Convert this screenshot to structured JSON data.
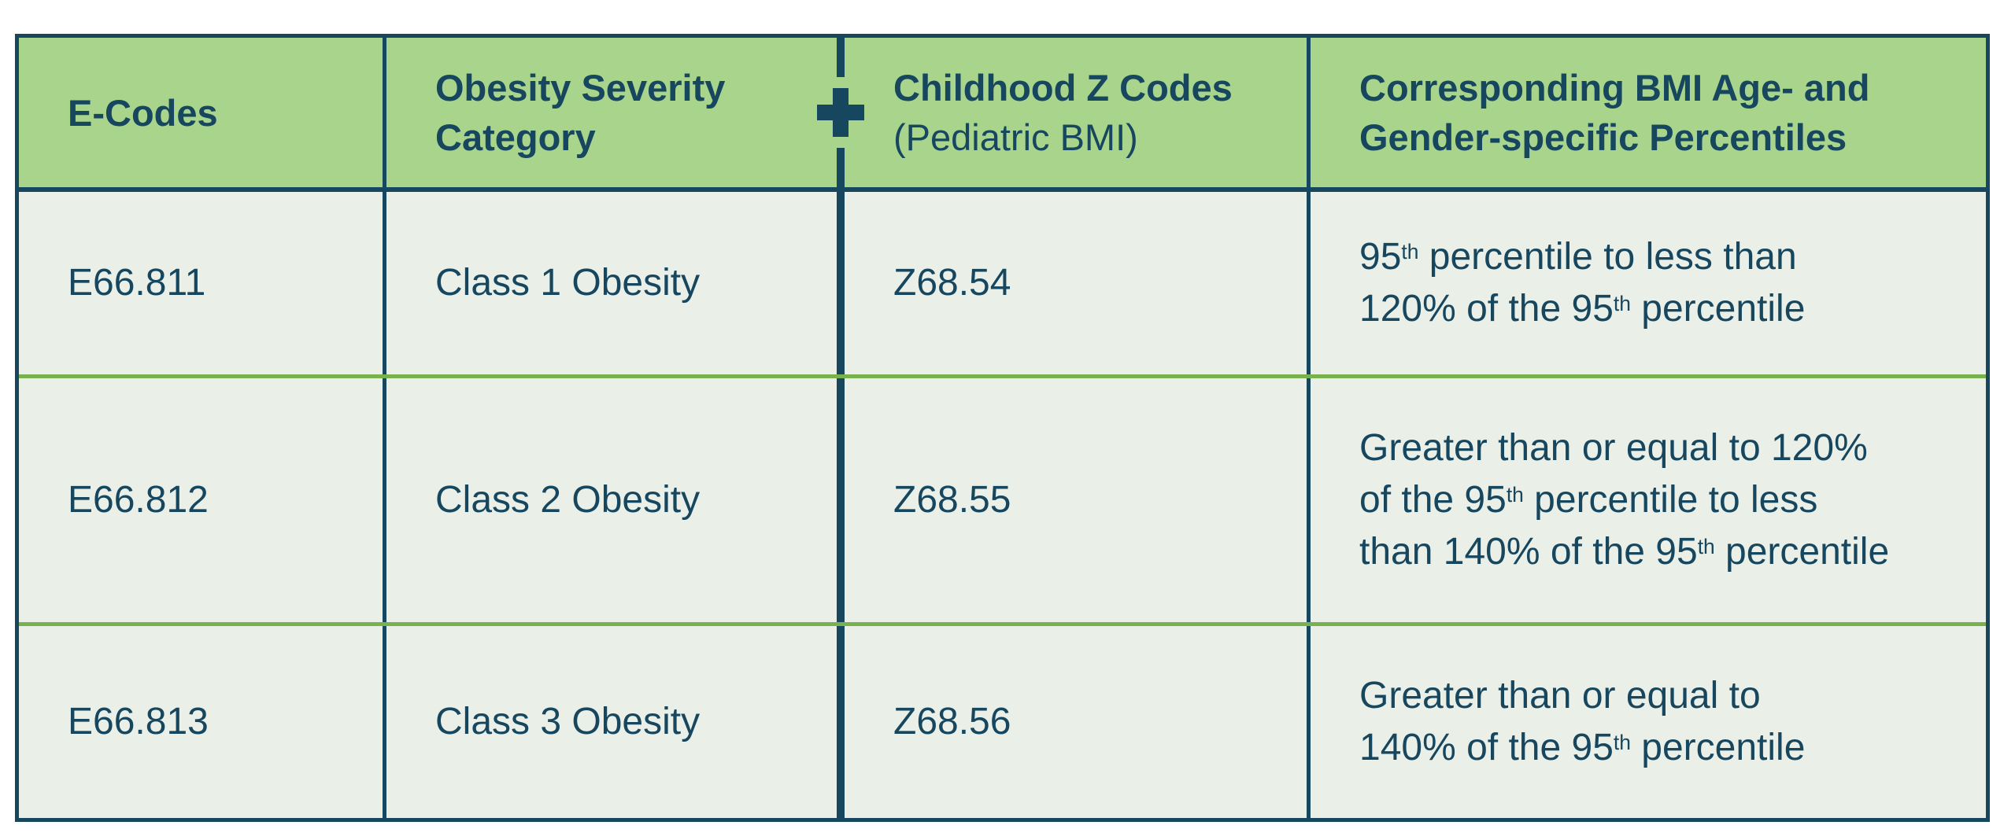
{
  "colors": {
    "navy": "#17465f",
    "header_green": "#a9d48c",
    "row_bg": "#eaefe7",
    "divider_green": "#77b24e",
    "page_bg": "#ffffff"
  },
  "header": {
    "e_codes": "E-Codes",
    "severity_parts": [
      {
        "t": "Obesity Severity"
      },
      {
        "br": true
      },
      {
        "t": "Category"
      }
    ],
    "z_codes_title": "Childhood Z Codes",
    "z_codes_sub": "(Pediatric BMI)",
    "percentiles_parts": [
      {
        "t": "Corresponding BMI Age- and"
      },
      {
        "br": true
      },
      {
        "t": "Gender-specific Percentiles"
      }
    ],
    "plus_icon": "plus"
  },
  "rows": [
    {
      "e_code": "E66.811",
      "category": "Class 1 Obesity",
      "z_code": "Z68.54",
      "percentile_parts": [
        {
          "t": "95"
        },
        {
          "t": "th",
          "sup": true
        },
        {
          "t": " percentile to less than"
        },
        {
          "br": true
        },
        {
          "t": "120% of the 95"
        },
        {
          "t": "th",
          "sup": true
        },
        {
          "t": " percentile"
        }
      ]
    },
    {
      "e_code": "E66.812",
      "category": "Class 2 Obesity",
      "z_code": "Z68.55",
      "percentile_parts": [
        {
          "t": "Greater than or equal to 120%"
        },
        {
          "br": true
        },
        {
          "t": "of the 95"
        },
        {
          "t": "th",
          "sup": true
        },
        {
          "t": " percentile to less"
        },
        {
          "br": true
        },
        {
          "t": "than 140% of the 95"
        },
        {
          "t": "th",
          "sup": true
        },
        {
          "t": " percentile"
        }
      ]
    },
    {
      "e_code": "E66.813",
      "category": "Class 3 Obesity",
      "z_code": "Z68.56",
      "percentile_parts": [
        {
          "t": "Greater than or equal to"
        },
        {
          "br": true
        },
        {
          "t": "140% of the 95"
        },
        {
          "t": "th",
          "sup": true
        },
        {
          "t": " percentile"
        }
      ]
    }
  ]
}
